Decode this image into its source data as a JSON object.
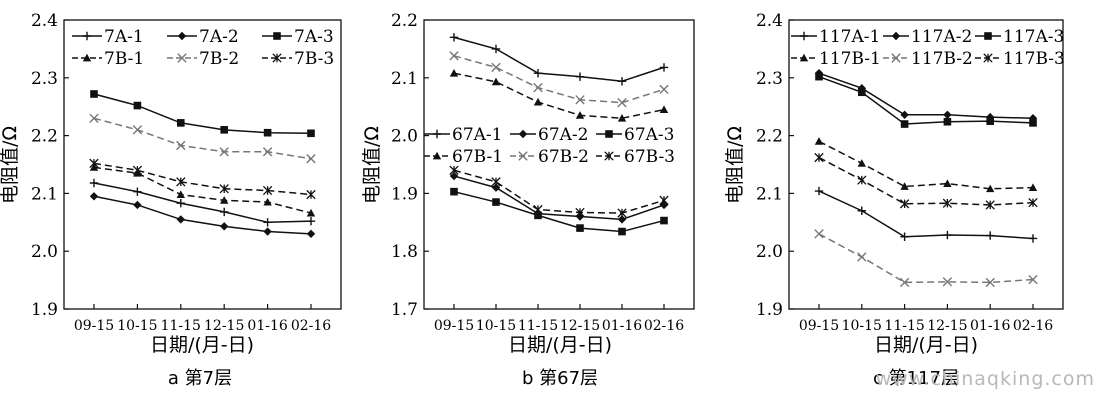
{
  "watermark": "www.chinaqking.com",
  "chart_data": [
    {
      "type": "line",
      "caption": "a  第7层",
      "xlabel": "日期/(月-日)",
      "ylabel": "电阻值/Ω",
      "ylim": [
        1.9,
        2.4
      ],
      "yticks": [
        "1.9",
        "2.0",
        "2.1",
        "2.2",
        "2.3",
        "2.4"
      ],
      "categories": [
        "09-15",
        "10-15",
        "11-15",
        "12-15",
        "01-16",
        "02-16"
      ],
      "legend_position": "top",
      "series": [
        {
          "name": "7A-1",
          "style": "plus",
          "dash": false,
          "color": "#111111",
          "values": [
            2.118,
            2.103,
            2.083,
            2.068,
            2.05,
            2.052
          ]
        },
        {
          "name": "7A-2",
          "style": "diamond",
          "dash": false,
          "color": "#111111",
          "values": [
            2.095,
            2.08,
            2.055,
            2.043,
            2.034,
            2.03
          ]
        },
        {
          "name": "7A-3",
          "style": "square",
          "dash": false,
          "color": "#111111",
          "values": [
            2.272,
            2.252,
            2.222,
            2.21,
            2.205,
            2.204
          ]
        },
        {
          "name": "7B-1",
          "style": "triangle",
          "dash": true,
          "color": "#111111",
          "values": [
            2.145,
            2.135,
            2.098,
            2.088,
            2.085,
            2.066
          ]
        },
        {
          "name": "7B-2",
          "style": "x",
          "dash": true,
          "color": "#777777",
          "values": [
            2.23,
            2.21,
            2.183,
            2.172,
            2.172,
            2.16
          ]
        },
        {
          "name": "7B-3",
          "style": "star",
          "dash": true,
          "color": "#111111",
          "values": [
            2.152,
            2.14,
            2.12,
            2.108,
            2.105,
            2.098
          ]
        }
      ]
    },
    {
      "type": "line",
      "caption": "b  第67层",
      "xlabel": "日期/(月-日)",
      "ylabel": "电阻值/Ω",
      "ylim": [
        1.7,
        2.2
      ],
      "yticks": [
        "1.7",
        "1.8",
        "1.9",
        "2.0",
        "2.1",
        "2.2"
      ],
      "categories": [
        "09-15",
        "10-15",
        "11-15",
        "12-15",
        "01-16",
        "02-16"
      ],
      "legend_position": "middle",
      "series": [
        {
          "name": "67A-1",
          "style": "plus",
          "dash": false,
          "color": "#111111",
          "values": [
            2.17,
            2.15,
            2.108,
            2.102,
            2.094,
            2.118
          ]
        },
        {
          "name": "67A-2",
          "style": "diamond",
          "dash": false,
          "color": "#111111",
          "values": [
            1.93,
            1.91,
            1.865,
            1.86,
            1.855,
            1.88
          ]
        },
        {
          "name": "67A-3",
          "style": "square",
          "dash": false,
          "color": "#111111",
          "values": [
            1.903,
            1.885,
            1.862,
            1.84,
            1.834,
            1.853
          ]
        },
        {
          "name": "67B-1",
          "style": "triangle",
          "dash": true,
          "color": "#111111",
          "values": [
            2.108,
            2.093,
            2.058,
            2.035,
            2.03,
            2.045
          ]
        },
        {
          "name": "67B-2",
          "style": "x",
          "dash": true,
          "color": "#777777",
          "values": [
            2.138,
            2.118,
            2.083,
            2.062,
            2.057,
            2.08
          ]
        },
        {
          "name": "67B-3",
          "style": "star",
          "dash": true,
          "color": "#111111",
          "values": [
            1.94,
            1.92,
            1.872,
            1.867,
            1.866,
            1.888
          ]
        }
      ]
    },
    {
      "type": "line",
      "caption": "c  第117层",
      "xlabel": "日期/(月-日)",
      "ylabel": "电阻值/Ω",
      "ylim": [
        1.9,
        2.4
      ],
      "yticks": [
        "1.9",
        "2.0",
        "2.1",
        "2.2",
        "2.3",
        "2.4"
      ],
      "categories": [
        "09-15",
        "10-15",
        "11-15",
        "12-15",
        "01-16",
        "02-16"
      ],
      "legend_position": "top",
      "series": [
        {
          "name": "117A-1",
          "style": "plus",
          "dash": false,
          "color": "#111111",
          "values": [
            2.104,
            2.07,
            2.025,
            2.028,
            2.027,
            2.022
          ]
        },
        {
          "name": "117A-2",
          "style": "diamond",
          "dash": false,
          "color": "#111111",
          "values": [
            2.308,
            2.282,
            2.236,
            2.236,
            2.232,
            2.23
          ]
        },
        {
          "name": "117A-3",
          "style": "square",
          "dash": false,
          "color": "#111111",
          "values": [
            2.302,
            2.275,
            2.22,
            2.224,
            2.225,
            2.222
          ]
        },
        {
          "name": "117B-1",
          "style": "triangle",
          "dash": true,
          "color": "#111111",
          "values": [
            2.19,
            2.152,
            2.112,
            2.117,
            2.108,
            2.11
          ]
        },
        {
          "name": "117B-2",
          "style": "x",
          "dash": true,
          "color": "#777777",
          "values": [
            2.03,
            1.99,
            1.946,
            1.947,
            1.946,
            1.951
          ]
        },
        {
          "name": "117B-3",
          "style": "star",
          "dash": true,
          "color": "#111111",
          "values": [
            2.162,
            2.123,
            2.082,
            2.083,
            2.08,
            2.084
          ]
        }
      ]
    }
  ]
}
